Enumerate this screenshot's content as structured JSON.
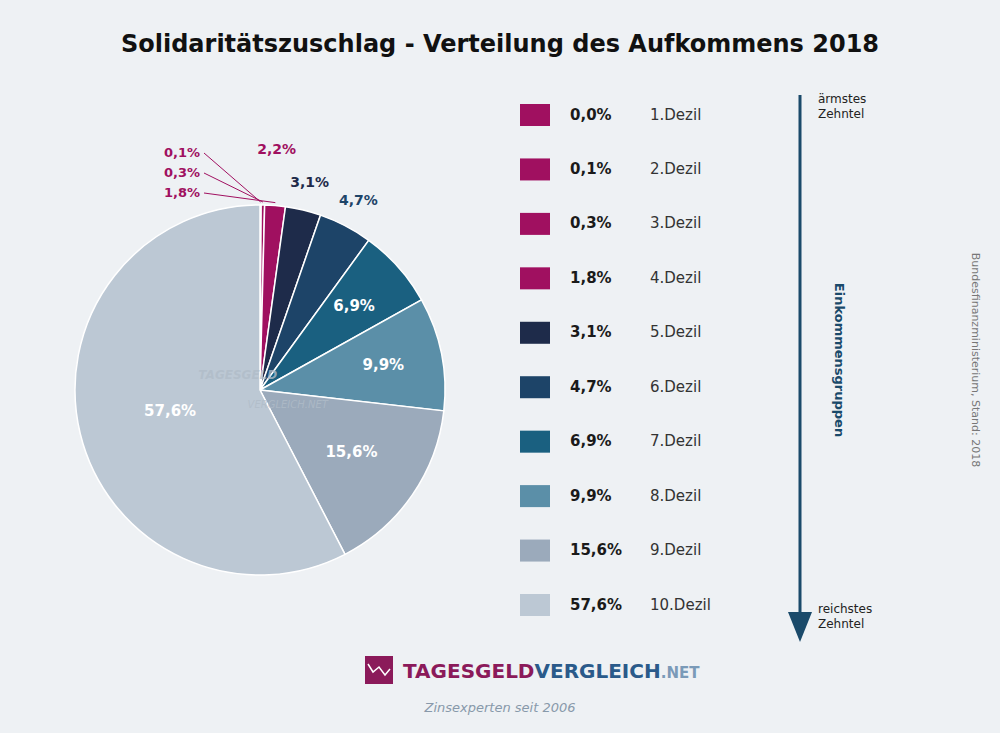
{
  "chart_data": {
    "type": "pie",
    "title": "Solidaritätszuschlag - Verteilung des Aufkommens 2018",
    "subtitle": "Zinsexperten seit 2006",
    "source": "Bundesfinanzministerium, Stand: 2018",
    "categories": [
      "1.Dezil",
      "2.Dezil",
      "3.Dezil",
      "4.Dezil",
      "5.Dezil",
      "6.Dezil",
      "7.Dezil",
      "8.Dezil",
      "9.Dezil",
      "10.Dezil"
    ],
    "values": [
      0.0,
      0.1,
      0.3,
      1.8,
      3.1,
      4.7,
      6.9,
      9.9,
      15.6,
      57.6
    ],
    "value_labels": [
      "0,0%",
      "0,1%",
      "0,3%",
      "1,8%",
      "3,1%",
      "4,7%",
      "6,9%",
      "9,9%",
      "15,6%",
      "57,6%"
    ],
    "colors": [
      "#A01060",
      "#A01060",
      "#A01060",
      "#A01060",
      "#1E2B4A",
      "#1D4468",
      "#1A6080",
      "#5B8FA8",
      "#9BAABB",
      "#BCC8D4"
    ],
    "data_labels": true,
    "legend": "right",
    "annotations": [
      "2,2%",
      "ärmstes\nZehntel",
      "reichstes\nZehntel",
      "Einkommensgruppen",
      "TAGESGELD",
      "VERGLEICH.NET",
      "TAGESGELD",
      "VERGLEICH",
      ".NET"
    ]
  }
}
